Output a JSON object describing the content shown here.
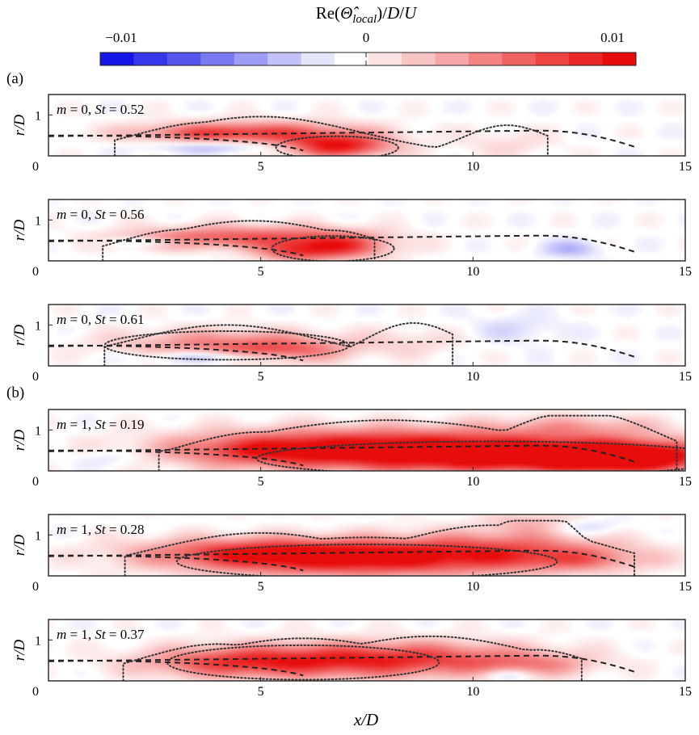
{
  "colorbar": {
    "title_parts": [
      "Re(",
      "Θ̂",
      "local",
      ")/",
      "D",
      "/",
      "U"
    ],
    "ticks": [
      {
        "value": -0.01,
        "label": "−0.01"
      },
      {
        "value": 0,
        "label": "0"
      },
      {
        "value": 0.01,
        "label": "0.01"
      }
    ],
    "range": [
      -0.01,
      0.01
    ],
    "colors": [
      "#1515e8",
      "#3636ec",
      "#5656ef",
      "#7979f2",
      "#9d9df5",
      "#c2c2f8",
      "#e4e4fb",
      "#ffffff",
      "#fbe3e3",
      "#f8c5c5",
      "#f5a6a6",
      "#f38383",
      "#f06262",
      "#ed4343",
      "#ea2626",
      "#e80b0b"
    ]
  },
  "panel_labels": [
    "(a)",
    "(b)"
  ],
  "axis_labels": {
    "x": "x/D",
    "y": "r/D"
  },
  "chart_data": [
    {
      "type": "heatmap",
      "group": "(a)",
      "m": 0,
      "St": 0.52,
      "label": "m = 0, St = 0.52",
      "x_ticks": [
        0,
        5,
        10,
        15
      ],
      "y_ticks": [
        0,
        1
      ],
      "xlim": [
        0,
        15
      ],
      "ylim": [
        0,
        1.5
      ],
      "xlabel": "",
      "ylabel": "r/D",
      "blobs": [
        {
          "x": 6.8,
          "r": 0.25,
          "sx": 0.9,
          "sr": 0.2,
          "v": 0.0095
        },
        {
          "x": 5.0,
          "r": 0.6,
          "sx": 1.8,
          "sr": 0.2,
          "v": 0.0055
        },
        {
          "x": 3.8,
          "r": 0.55,
          "sx": 1.4,
          "sr": 0.15,
          "v": 0.0035
        },
        {
          "x": 4.0,
          "r": 0.22,
          "sx": 1.2,
          "sr": 0.1,
          "v": -0.003
        },
        {
          "x": 10.8,
          "r": 0.3,
          "sx": 0.8,
          "sr": 0.25,
          "v": 0.0015
        }
      ]
    },
    {
      "type": "heatmap",
      "group": "(a)",
      "m": 0,
      "St": 0.56,
      "label": "m = 0, St = 0.56",
      "x_ticks": [
        0,
        5,
        10,
        15
      ],
      "y_ticks": [
        0,
        1
      ],
      "xlim": [
        0,
        15
      ],
      "ylim": [
        0,
        1.5
      ],
      "xlabel": "",
      "ylabel": "r/D",
      "blobs": [
        {
          "x": 6.7,
          "r": 0.35,
          "sx": 0.9,
          "sr": 0.22,
          "v": 0.008
        },
        {
          "x": 4.8,
          "r": 0.62,
          "sx": 1.8,
          "sr": 0.2,
          "v": 0.0055
        },
        {
          "x": 3.2,
          "r": 0.5,
          "sx": 1.2,
          "sr": 0.15,
          "v": 0.003
        },
        {
          "x": 2.5,
          "r": 0.48,
          "sx": 0.8,
          "sr": 0.08,
          "v": -0.0035
        },
        {
          "x": 12.3,
          "r": 0.3,
          "sx": 0.5,
          "sr": 0.15,
          "v": -0.003
        },
        {
          "x": 5.7,
          "r": 0.2,
          "sx": 0.6,
          "sr": 0.15,
          "v": 0.004
        }
      ]
    },
    {
      "type": "heatmap",
      "group": "(a)",
      "m": 0,
      "St": 0.61,
      "label": "m = 0, St = 0.61",
      "x_ticks": [
        0,
        5,
        10,
        15
      ],
      "y_ticks": [
        0,
        1
      ],
      "xlim": [
        0,
        15
      ],
      "ylim": [
        0,
        1.5
      ],
      "xlabel": "",
      "ylabel": "r/D",
      "blobs": [
        {
          "x": 4.2,
          "r": 0.55,
          "sx": 1.8,
          "sr": 0.25,
          "v": 0.005
        },
        {
          "x": 5.6,
          "r": 0.35,
          "sx": 1.0,
          "sr": 0.2,
          "v": 0.0045
        },
        {
          "x": 4.0,
          "r": 0.22,
          "sx": 1.2,
          "sr": 0.1,
          "v": -0.004
        },
        {
          "x": 8.6,
          "r": 0.6,
          "sx": 0.9,
          "sr": 0.25,
          "v": 0.0015
        },
        {
          "x": 11.0,
          "r": 0.9,
          "sx": 0.8,
          "sr": 0.25,
          "v": -0.0015
        }
      ]
    },
    {
      "type": "heatmap",
      "group": "(b)",
      "m": 1,
      "St": 0.19,
      "label": "m = 1, St = 0.19",
      "x_ticks": [
        0,
        5,
        10,
        15
      ],
      "y_ticks": [
        0,
        1
      ],
      "xlim": [
        0,
        15
      ],
      "ylim": [
        0,
        1.5
      ],
      "xlabel": "",
      "ylabel": "r/D",
      "blobs": [
        {
          "x": 10.5,
          "r": 0.35,
          "sx": 3.5,
          "sr": 0.3,
          "v": 0.0105
        },
        {
          "x": 13.5,
          "r": 0.35,
          "sx": 1.2,
          "sr": 0.25,
          "v": 0.01
        },
        {
          "x": 8.0,
          "r": 0.7,
          "sx": 3.0,
          "sr": 0.3,
          "v": 0.0065
        },
        {
          "x": 5.0,
          "r": 0.5,
          "sx": 1.5,
          "sr": 0.25,
          "v": 0.0045
        },
        {
          "x": 12.5,
          "r": 1.1,
          "sx": 1.5,
          "sr": 0.2,
          "v": 0.003
        },
        {
          "x": 1.5,
          "r": 0.3,
          "sx": 0.6,
          "sr": 0.15,
          "v": -0.0015
        }
      ]
    },
    {
      "type": "heatmap",
      "group": "(b)",
      "m": 1,
      "St": 0.28,
      "label": "m = 1, St = 0.28",
      "x_ticks": [
        0,
        5,
        10,
        15
      ],
      "y_ticks": [
        0,
        1
      ],
      "xlim": [
        0,
        15
      ],
      "ylim": [
        0,
        1.5
      ],
      "xlabel": "",
      "ylabel": "r/D",
      "blobs": [
        {
          "x": 7.5,
          "r": 0.4,
          "sx": 2.8,
          "sr": 0.3,
          "v": 0.0085
        },
        {
          "x": 5.0,
          "r": 0.6,
          "sx": 2.0,
          "sr": 0.25,
          "v": 0.0065
        },
        {
          "x": 10.5,
          "r": 0.7,
          "sx": 2.0,
          "sr": 0.3,
          "v": 0.005
        },
        {
          "x": 12.5,
          "r": 0.4,
          "sx": 1.2,
          "sr": 0.2,
          "v": 0.0035
        },
        {
          "x": 11.5,
          "r": 1.3,
          "sx": 0.8,
          "sr": 0.2,
          "v": 0.003
        },
        {
          "x": 12.5,
          "r": 1.2,
          "sx": 0.7,
          "sr": 0.15,
          "v": -0.0025
        }
      ]
    },
    {
      "type": "heatmap",
      "group": "(b)",
      "m": 1,
      "St": 0.37,
      "label": "m = 1, St = 0.37",
      "x_ticks": [
        0,
        5,
        10,
        15
      ],
      "y_ticks": [
        0,
        1
      ],
      "xlim": [
        0,
        15
      ],
      "ylim": [
        0,
        1.5
      ],
      "xlabel": "x/D",
      "ylabel": "r/D",
      "blobs": [
        {
          "x": 6.0,
          "r": 0.5,
          "sx": 2.0,
          "sr": 0.3,
          "v": 0.0065
        },
        {
          "x": 9.0,
          "r": 0.55,
          "sx": 2.0,
          "sr": 0.3,
          "v": 0.006
        },
        {
          "x": 4.0,
          "r": 0.45,
          "sx": 1.4,
          "sr": 0.25,
          "v": 0.004
        },
        {
          "x": 11.5,
          "r": 0.4,
          "sx": 1.0,
          "sr": 0.2,
          "v": 0.003
        },
        {
          "x": 10.8,
          "r": 0.15,
          "sx": 0.4,
          "sr": 0.1,
          "v": -0.003
        }
      ]
    }
  ]
}
